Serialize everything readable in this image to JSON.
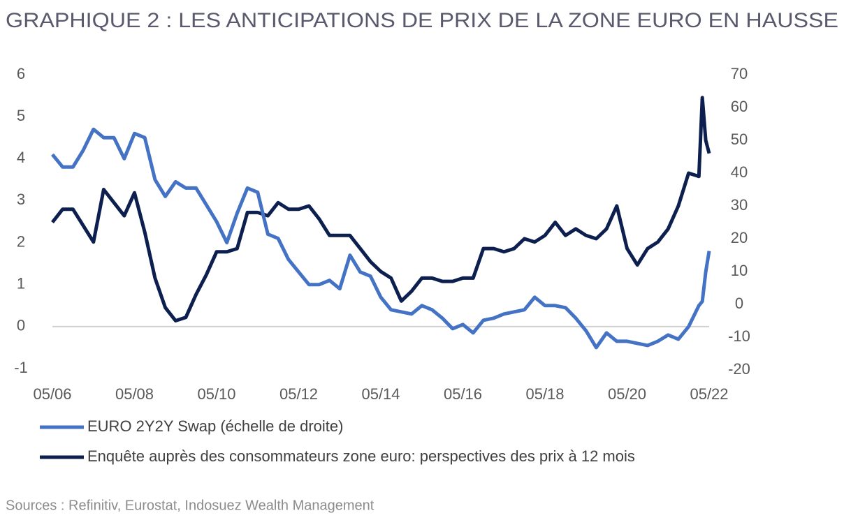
{
  "chart_data": {
    "type": "line",
    "title": "GRAPHIQUE 2 : LES ANTICIPATIONS DE PRIX DE LA ZONE EURO EN HAUSSE",
    "source": "Sources : Refinitiv, Eurostat, Indosuez Wealth Management",
    "x": [
      "05/06",
      "08/06",
      "11/06",
      "02/07",
      "05/07",
      "08/07",
      "11/07",
      "02/08",
      "05/08",
      "08/08",
      "11/08",
      "02/09",
      "05/09",
      "08/09",
      "11/09",
      "02/10",
      "05/10",
      "08/10",
      "11/10",
      "02/11",
      "05/11",
      "08/11",
      "11/11",
      "02/12",
      "05/12",
      "08/12",
      "11/12",
      "02/13",
      "05/13",
      "08/13",
      "11/13",
      "02/14",
      "05/14",
      "08/14",
      "11/14",
      "02/15",
      "05/15",
      "08/15",
      "11/15",
      "02/16",
      "05/16",
      "08/16",
      "11/16",
      "02/17",
      "05/17",
      "08/17",
      "11/17",
      "02/18",
      "05/18",
      "08/18",
      "11/18",
      "02/19",
      "05/19",
      "08/19",
      "11/19",
      "02/20",
      "05/20",
      "08/20",
      "11/20",
      "02/21",
      "05/21",
      "08/21",
      "11/21",
      "02/22",
      "03/22",
      "04/22",
      "05/22"
    ],
    "series": [
      {
        "name": "EURO 2Y2Y Swap (échelle de droite)",
        "color": "#4472c4",
        "axis": "y",
        "values": [
          4.1,
          3.8,
          3.8,
          4.2,
          4.7,
          4.5,
          4.5,
          4.0,
          4.6,
          4.5,
          3.5,
          3.1,
          3.45,
          3.3,
          3.3,
          2.9,
          2.5,
          2.0,
          2.7,
          3.3,
          3.2,
          2.2,
          2.1,
          1.6,
          1.3,
          1.0,
          1.0,
          1.1,
          0.9,
          1.7,
          1.3,
          1.2,
          0.7,
          0.4,
          0.35,
          0.3,
          0.5,
          0.4,
          0.2,
          -0.05,
          0.05,
          -0.15,
          0.15,
          0.2,
          0.3,
          0.35,
          0.4,
          0.7,
          0.5,
          0.5,
          0.45,
          0.2,
          -0.1,
          -0.5,
          -0.15,
          -0.35,
          -0.35,
          -0.4,
          -0.45,
          -0.35,
          -0.2,
          -0.3,
          0.0,
          0.5,
          0.6,
          1.3,
          1.8
        ]
      },
      {
        "name": "Enquête auprès des consommateurs zone euro: perspectives des prix à 12 mois",
        "color": "#0d1f4f",
        "axis": "y2",
        "values": [
          25,
          29,
          29,
          24,
          19,
          35,
          31,
          27,
          34,
          22,
          8,
          -1,
          -5,
          -4,
          3,
          9,
          16,
          16,
          17,
          28,
          28,
          27,
          31,
          29,
          29,
          30,
          26,
          21,
          21,
          21,
          17,
          13,
          10,
          8,
          1,
          4,
          8,
          8,
          7,
          7,
          8,
          8,
          17,
          17,
          16,
          17,
          20,
          19,
          21,
          25,
          21,
          23,
          21,
          20,
          23,
          30,
          17,
          12,
          17,
          19,
          23,
          30,
          40,
          39,
          63,
          50,
          46
        ]
      }
    ],
    "xlim": [
      "05/06",
      "05/22"
    ],
    "xticks": [
      "05/06",
      "05/08",
      "05/10",
      "05/12",
      "05/14",
      "05/16",
      "05/18",
      "05/20",
      "05/22"
    ],
    "ylim": [
      -1,
      6
    ],
    "yticks": [
      -1,
      0,
      1,
      2,
      3,
      4,
      5,
      6
    ],
    "y2lim": [
      -20,
      70
    ],
    "y2ticks": [
      -20,
      -10,
      0,
      10,
      20,
      30,
      40,
      50,
      60,
      70
    ],
    "zero_line": true
  }
}
